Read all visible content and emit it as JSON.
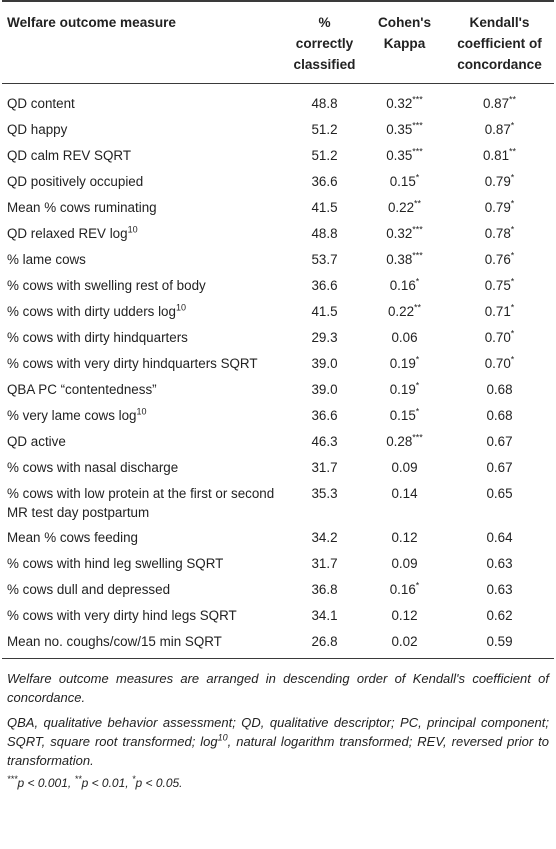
{
  "headers": {
    "measure": "Welfare outcome measure",
    "pct": "% correctly classified",
    "kappa": "Cohen's Kappa",
    "kendall": "Kendall's coefficient of concordance"
  },
  "rows": [
    {
      "measure": "QD content",
      "sup": "",
      "suffix": "",
      "pct": "48.8",
      "kappa": "0.32",
      "ks": "***",
      "kendall": "0.87",
      "ws": "**"
    },
    {
      "measure": "QD happy",
      "sup": "",
      "suffix": "",
      "pct": "51.2",
      "kappa": "0.35",
      "ks": "***",
      "kendall": "0.87",
      "ws": "*"
    },
    {
      "measure": "QD calm REV SQRT",
      "sup": "",
      "suffix": "",
      "pct": "51.2",
      "kappa": "0.35",
      "ks": "***",
      "kendall": "0.81",
      "ws": "**"
    },
    {
      "measure": "QD positively occupied",
      "sup": "",
      "suffix": "",
      "pct": "36.6",
      "kappa": "0.15",
      "ks": "*",
      "kendall": "0.79",
      "ws": "*"
    },
    {
      "measure": "Mean % cows ruminating",
      "sup": "",
      "suffix": "",
      "pct": "41.5",
      "kappa": "0.22",
      "ks": "**",
      "kendall": "0.79",
      "ws": "*"
    },
    {
      "measure": "QD relaxed REV log",
      "sup": "10",
      "suffix": "",
      "pct": "48.8",
      "kappa": "0.32",
      "ks": "***",
      "kendall": "0.78",
      "ws": "*"
    },
    {
      "measure": "% lame cows",
      "sup": "",
      "suffix": "",
      "pct": "53.7",
      "kappa": "0.38",
      "ks": "***",
      "kendall": "0.76",
      "ws": "*"
    },
    {
      "measure": "% cows with swelling rest of body",
      "sup": "",
      "suffix": "",
      "pct": "36.6",
      "kappa": "0.16",
      "ks": "*",
      "kendall": "0.75",
      "ws": "*"
    },
    {
      "measure": "% cows with dirty udders log",
      "sup": "10",
      "suffix": "",
      "pct": "41.5",
      "kappa": "0.22",
      "ks": "**",
      "kendall": "0.71",
      "ws": "*"
    },
    {
      "measure": "% cows with dirty hindquarters",
      "sup": "",
      "suffix": "",
      "pct": "29.3",
      "kappa": "0.06",
      "ks": "",
      "kendall": "0.70",
      "ws": "*"
    },
    {
      "measure": "% cows with very dirty hindquarters SQRT",
      "sup": "",
      "suffix": "",
      "pct": "39.0",
      "kappa": "0.19",
      "ks": "*",
      "kendall": "0.70",
      "ws": "*"
    },
    {
      "measure": "QBA PC “contentedness”",
      "sup": "",
      "suffix": "",
      "pct": "39.0",
      "kappa": "0.19",
      "ks": "*",
      "kendall": "0.68",
      "ws": ""
    },
    {
      "measure": "% very lame cows log",
      "sup": "10",
      "suffix": "",
      "pct": "36.6",
      "kappa": "0.15",
      "ks": "*",
      "kendall": "0.68",
      "ws": ""
    },
    {
      "measure": "QD active",
      "sup": "",
      "suffix": "",
      "pct": "46.3",
      "kappa": "0.28",
      "ks": "***",
      "kendall": "0.67",
      "ws": ""
    },
    {
      "measure": "% cows with nasal discharge",
      "sup": "",
      "suffix": "",
      "pct": "31.7",
      "kappa": "0.09",
      "ks": "",
      "kendall": "0.67",
      "ws": ""
    },
    {
      "measure": "% cows with low protein at the first or second MR test day postpartum",
      "sup": "",
      "suffix": "",
      "pct": "35.3",
      "kappa": "0.14",
      "ks": "",
      "kendall": "0.65",
      "ws": ""
    },
    {
      "measure": "Mean % cows feeding",
      "sup": "",
      "suffix": "",
      "pct": "34.2",
      "kappa": "0.12",
      "ks": "",
      "kendall": "0.64",
      "ws": ""
    },
    {
      "measure": "% cows with hind leg swelling SQRT",
      "sup": "",
      "suffix": "",
      "pct": "31.7",
      "kappa": "0.09",
      "ks": "",
      "kendall": "0.63",
      "ws": ""
    },
    {
      "measure": "% cows dull and depressed",
      "sup": "",
      "suffix": "",
      "pct": "36.8",
      "kappa": "0.16",
      "ks": "*",
      "kendall": "0.63",
      "ws": ""
    },
    {
      "measure": "% cows with very dirty hind legs SQRT",
      "sup": "",
      "suffix": "",
      "pct": "34.1",
      "kappa": "0.12",
      "ks": "",
      "kendall": "0.62",
      "ws": ""
    },
    {
      "measure": "Mean no. coughs/cow/15 min SQRT",
      "sup": "",
      "suffix": "",
      "pct": "26.8",
      "kappa": "0.02",
      "ks": "",
      "kendall": "0.59",
      "ws": ""
    }
  ],
  "footnotes": {
    "order": "Welfare outcome measures are arranged in descending order of Kendall's coefficient of concordance.",
    "abbrev_a": "QBA, qualitative behavior assessment; QD, qualitative descriptor; PC, principal component; SQRT, square root transformed; log",
    "abbrev_sup": "10",
    "abbrev_b": ", natural logarithm transformed; REV, reversed prior to transformation.",
    "sig_a_stars": "***",
    "sig_a": "p < 0.001, ",
    "sig_b_stars": "**",
    "sig_b": "p < 0.01, ",
    "sig_c_stars": "*",
    "sig_c": "p < 0.05."
  }
}
